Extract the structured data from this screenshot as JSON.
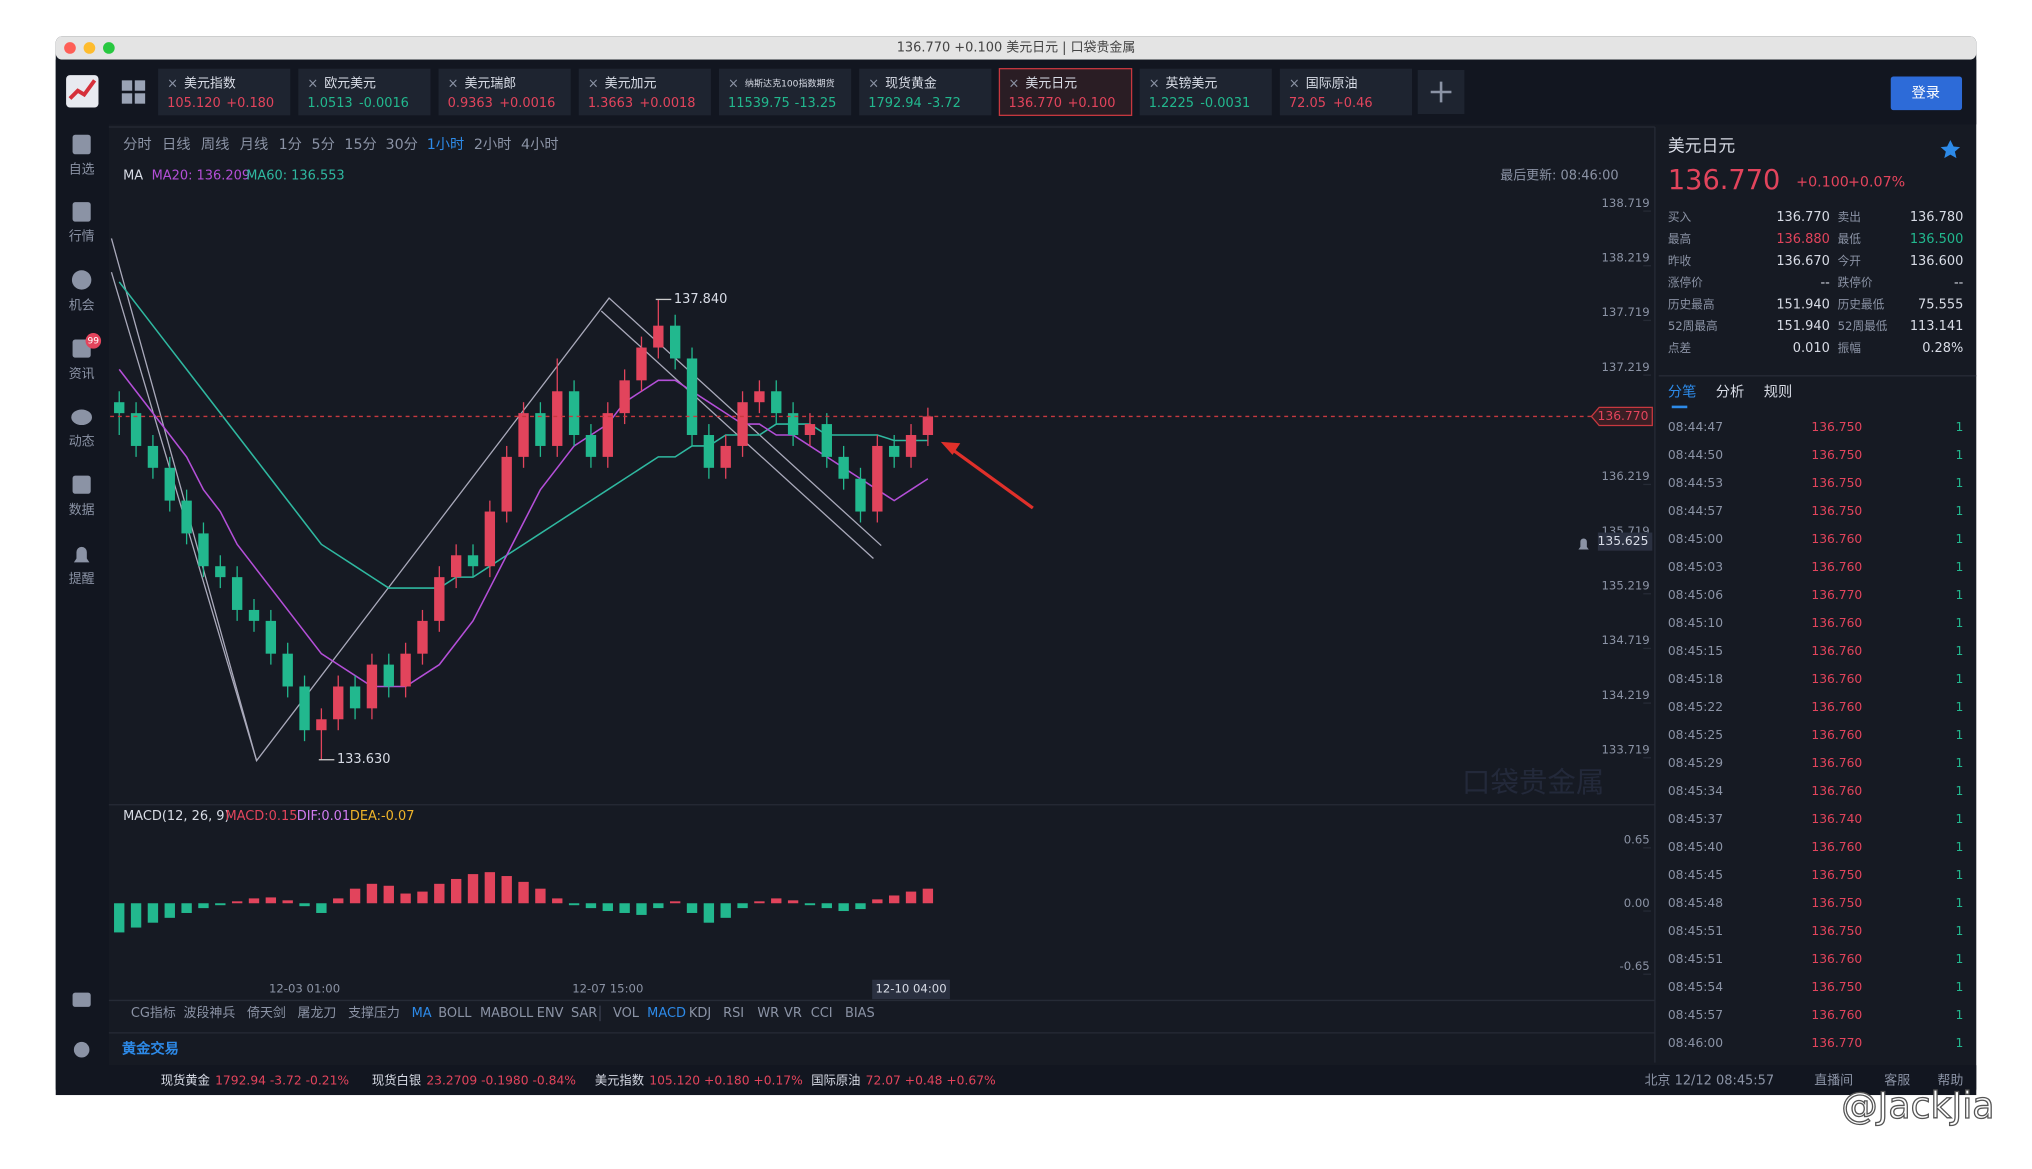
{
  "window_title": "136.770 +0.100 美元日元 | 口袋贵金属",
  "tabs": [
    {
      "name": "美元指数",
      "price": "105.120",
      "change": "+0.180"
    },
    {
      "name": "欧元美元",
      "price": "1.0513",
      "change": "-0.0016"
    },
    {
      "name": "美元瑞郎",
      "price": "0.9363",
      "change": "+0.0016"
    },
    {
      "name": "美元加元",
      "price": "1.3663",
      "change": "+0.0018"
    },
    {
      "name": "纳斯达克100指数期货",
      "price": "11539.75",
      "change": "-13.25"
    },
    {
      "name": "现货黄金",
      "price": "1792.94",
      "change": "-3.72"
    },
    {
      "name": "美元日元",
      "price": "136.770",
      "change": "+0.100"
    },
    {
      "name": "英镑美元",
      "price": "1.2225",
      "change": "-0.0031"
    },
    {
      "name": "国际原油",
      "price": "72.05",
      "change": "+0.46"
    }
  ],
  "active_tab": 6,
  "login": "登录",
  "sidebar": [
    "自选",
    "行情",
    "机会",
    "资讯",
    "动态",
    "数据",
    "提醒"
  ],
  "news_badge": "99",
  "timeframes": [
    "分时",
    "日线",
    "周线",
    "月线",
    "1分",
    "5分",
    "15分",
    "30分",
    "1小时",
    "2小时",
    "4小时"
  ],
  "active_timeframe": 8,
  "chart": {
    "type": "candlestick",
    "ma_label": "MA",
    "ma20_label": "MA20: 136.209",
    "ma60_label": "MA60: 136.553",
    "last_update": "最后更新: 08:46:00",
    "ylim": [
      133.23,
      138.86
    ],
    "yticks": [
      138.719,
      138.219,
      137.719,
      137.219,
      136.219,
      135.719,
      135.219,
      134.719,
      134.219,
      133.719
    ],
    "last_price": {
      "value": 136.77,
      "label": "136.770"
    },
    "alert_price": {
      "value": 135.625,
      "label": "135.625"
    },
    "annotations": [
      {
        "value": 137.84,
        "label": "137.840"
      },
      {
        "value": 133.63,
        "label": "133.630"
      }
    ],
    "times": [
      null,
      null,
      null,
      null,
      null,
      null,
      null,
      null,
      null,
      null,
      null,
      "12-03 01:00",
      null,
      null,
      null,
      null,
      null,
      null,
      null,
      null,
      null,
      null,
      null,
      null,
      null,
      null,
      null,
      null,
      null,
      "12-07 15:00",
      null,
      null,
      null,
      null,
      null,
      null,
      null,
      null,
      null,
      null,
      null,
      null,
      null,
      null,
      null,
      null,
      null,
      "12-10 04:00",
      null
    ],
    "candles": [
      [
        136.9,
        137.0,
        136.6,
        136.8
      ],
      [
        136.8,
        136.9,
        136.4,
        136.5
      ],
      [
        136.5,
        136.6,
        136.2,
        136.3
      ],
      [
        136.3,
        136.4,
        135.9,
        136.0
      ],
      [
        136.0,
        136.1,
        135.6,
        135.7
      ],
      [
        135.7,
        135.8,
        135.3,
        135.4
      ],
      [
        135.4,
        135.5,
        135.2,
        135.3
      ],
      [
        135.3,
        135.4,
        134.9,
        135.0
      ],
      [
        135.0,
        135.1,
        134.8,
        134.9
      ],
      [
        134.9,
        135.0,
        134.5,
        134.6
      ],
      [
        134.6,
        134.7,
        134.2,
        134.3
      ],
      [
        134.3,
        134.4,
        133.8,
        133.9
      ],
      [
        133.9,
        134.1,
        133.63,
        134.0
      ],
      [
        134.0,
        134.4,
        133.9,
        134.3
      ],
      [
        134.3,
        134.4,
        134.0,
        134.1
      ],
      [
        134.1,
        134.6,
        134.0,
        134.5
      ],
      [
        134.5,
        134.6,
        134.2,
        134.3
      ],
      [
        134.3,
        134.7,
        134.2,
        134.6
      ],
      [
        134.6,
        135.0,
        134.5,
        134.9
      ],
      [
        134.9,
        135.4,
        134.8,
        135.3
      ],
      [
        135.3,
        135.6,
        135.2,
        135.5
      ],
      [
        135.5,
        135.6,
        135.3,
        135.4
      ],
      [
        135.4,
        136.0,
        135.3,
        135.9
      ],
      [
        135.9,
        136.5,
        135.8,
        136.4
      ],
      [
        136.4,
        136.9,
        136.3,
        136.8
      ],
      [
        136.8,
        136.9,
        136.4,
        136.5
      ],
      [
        136.5,
        137.3,
        136.4,
        137.0
      ],
      [
        137.0,
        137.1,
        136.5,
        136.6
      ],
      [
        136.6,
        136.7,
        136.3,
        136.4
      ],
      [
        136.4,
        136.9,
        136.3,
        136.8
      ],
      [
        136.8,
        137.2,
        136.7,
        137.1
      ],
      [
        137.1,
        137.5,
        137.0,
        137.4
      ],
      [
        137.4,
        137.84,
        137.3,
        137.6
      ],
      [
        137.6,
        137.7,
        137.2,
        137.3
      ],
      [
        137.3,
        137.4,
        136.5,
        136.6
      ],
      [
        136.6,
        136.7,
        136.2,
        136.3
      ],
      [
        136.3,
        136.6,
        136.2,
        136.5
      ],
      [
        136.5,
        137.0,
        136.4,
        136.9
      ],
      [
        136.9,
        137.1,
        136.8,
        137.0
      ],
      [
        137.0,
        137.1,
        136.7,
        136.8
      ],
      [
        136.8,
        136.9,
        136.5,
        136.6
      ],
      [
        136.6,
        136.8,
        136.5,
        136.7
      ],
      [
        136.7,
        136.8,
        136.3,
        136.4
      ],
      [
        136.4,
        136.5,
        136.1,
        136.2
      ],
      [
        136.2,
        136.3,
        135.8,
        135.9
      ],
      [
        135.9,
        136.6,
        135.8,
        136.5
      ],
      [
        136.5,
        136.6,
        136.3,
        136.4
      ],
      [
        136.4,
        136.7,
        136.3,
        136.6
      ],
      [
        136.6,
        136.85,
        136.5,
        136.77
      ]
    ],
    "ma20": [
      137.2,
      137.0,
      136.8,
      136.6,
      136.4,
      136.1,
      135.9,
      135.6,
      135.4,
      135.2,
      135.0,
      134.8,
      134.6,
      134.5,
      134.4,
      134.3,
      134.3,
      134.3,
      134.4,
      134.5,
      134.7,
      134.9,
      135.2,
      135.5,
      135.8,
      136.1,
      136.3,
      136.5,
      136.6,
      136.7,
      136.9,
      137.0,
      137.1,
      137.1,
      137.0,
      136.9,
      136.8,
      136.7,
      136.7,
      136.6,
      136.6,
      136.5,
      136.4,
      136.3,
      136.2,
      136.1,
      136.0,
      136.1,
      136.2
    ],
    "ma60": [
      138.0,
      137.8,
      137.6,
      137.4,
      137.2,
      137.0,
      136.8,
      136.6,
      136.4,
      136.2,
      136.0,
      135.8,
      135.6,
      135.5,
      135.4,
      135.3,
      135.2,
      135.2,
      135.2,
      135.2,
      135.3,
      135.3,
      135.4,
      135.5,
      135.6,
      135.7,
      135.8,
      135.9,
      136.0,
      136.1,
      136.2,
      136.3,
      136.4,
      136.4,
      136.5,
      136.5,
      136.6,
      136.6,
      136.6,
      136.7,
      136.7,
      136.7,
      136.6,
      136.6,
      136.6,
      136.6,
      136.55,
      136.55,
      136.55
    ],
    "ma20_color": "#b44fd8",
    "ma60_color": "#2fb8a0",
    "up_color": "#e2445c",
    "down_color": "#22b88e"
  },
  "macd": {
    "type": "bar",
    "title": "MACD(12, 26, 9)",
    "macd_label": "MACD:0.15",
    "dif_label": "DIF:0.01",
    "dea_label": "DEA:-0.07",
    "ylim": [
      -0.8,
      0.8
    ],
    "yticks": [
      0.65,
      {
        "value": 0,
        "label": "0.00"
      },
      -0.65
    ],
    "values": [
      -0.3,
      -0.25,
      -0.2,
      -0.15,
      -0.1,
      -0.05,
      -0.02,
      0.02,
      0.05,
      0.06,
      0.03,
      -0.03,
      -0.1,
      0.05,
      0.15,
      0.2,
      0.18,
      0.1,
      0.12,
      0.2,
      0.25,
      0.3,
      0.32,
      0.28,
      0.22,
      0.15,
      0.05,
      -0.02,
      -0.05,
      -0.08,
      -0.1,
      -0.12,
      -0.05,
      0.02,
      -0.1,
      -0.2,
      -0.15,
      -0.05,
      0.02,
      0.05,
      0.03,
      -0.02,
      -0.05,
      -0.08,
      -0.06,
      0.04,
      0.08,
      0.12,
      0.15
    ]
  },
  "indicators": [
    "CG指标",
    "波段神兵",
    "倚天剑",
    "屠龙刀",
    "支撑压力",
    "MA",
    "BOLL",
    "MABOLL",
    "ENV",
    "SAR",
    "VOL",
    "MACD",
    "KDJ",
    "RSI",
    "WR",
    "VR",
    "CCI",
    "BIAS"
  ],
  "active_indicators": [
    5,
    11
  ],
  "section": "黄金交易",
  "watermark": "口袋贵金属",
  "quote": {
    "name": "美元日元",
    "price": "136.770",
    "change": "+0.100",
    "percent": "+0.07%",
    "rows": [
      [
        "买入",
        "136.770",
        "卖出",
        "136.780"
      ],
      [
        "最高",
        "136.880",
        "最低",
        "136.500"
      ],
      [
        "昨收",
        "136.670",
        "今开",
        "136.600"
      ],
      [
        "涨停价",
        "--",
        "跌停价",
        "--"
      ],
      [
        "历史最高",
        "151.940",
        "历史最低",
        "75.555"
      ],
      [
        "52周最高",
        "151.940",
        "52周最低",
        "113.141"
      ],
      [
        "点差",
        "0.010",
        "振幅",
        "0.28%"
      ]
    ],
    "tabs": [
      "分笔",
      "分析",
      "规则"
    ]
  },
  "trades": [
    [
      "08:44:47",
      "136.750",
      "1"
    ],
    [
      "08:44:50",
      "136.750",
      "1"
    ],
    [
      "08:44:53",
      "136.750",
      "1"
    ],
    [
      "08:44:57",
      "136.750",
      "1"
    ],
    [
      "08:45:00",
      "136.760",
      "1"
    ],
    [
      "08:45:03",
      "136.760",
      "1"
    ],
    [
      "08:45:06",
      "136.770",
      "1"
    ],
    [
      "08:45:10",
      "136.760",
      "1"
    ],
    [
      "08:45:15",
      "136.760",
      "1"
    ],
    [
      "08:45:18",
      "136.760",
      "1"
    ],
    [
      "08:45:22",
      "136.760",
      "1"
    ],
    [
      "08:45:25",
      "136.760",
      "1"
    ],
    [
      "08:45:29",
      "136.760",
      "1"
    ],
    [
      "08:45:34",
      "136.760",
      "1"
    ],
    [
      "08:45:37",
      "136.740",
      "1"
    ],
    [
      "08:45:40",
      "136.760",
      "1"
    ],
    [
      "08:45:45",
      "136.750",
      "1"
    ],
    [
      "08:45:48",
      "136.750",
      "1"
    ],
    [
      "08:45:51",
      "136.750",
      "1"
    ],
    [
      "08:45:51",
      "136.760",
      "1"
    ],
    [
      "08:45:54",
      "136.750",
      "1"
    ],
    [
      "08:45:57",
      "136.760",
      "1"
    ],
    [
      "08:46:00",
      "136.770",
      "1"
    ]
  ],
  "ticker": [
    [
      "现货黄金",
      "1792.94 -3.72 -0.21%"
    ],
    [
      "现货白银",
      "23.2709 -0.1980 -0.84%"
    ],
    [
      "美元指数",
      "105.120 +0.180 +0.17%"
    ],
    [
      "国际原油",
      "72.07 +0.48 +0.67%"
    ]
  ],
  "clock": "北京 12/12 08:45:57",
  "links": [
    "直播间",
    "客服",
    "帮助"
  ],
  "credit": "@JackJia"
}
